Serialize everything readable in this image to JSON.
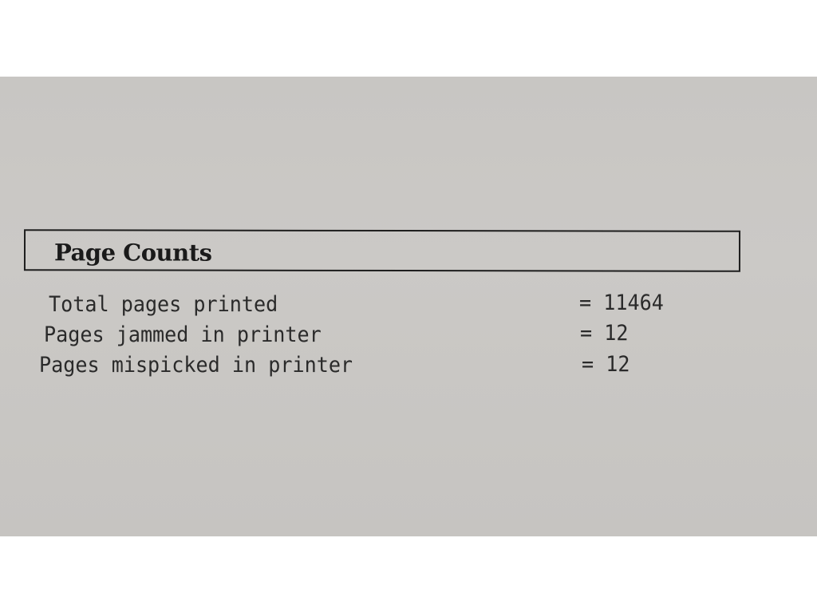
{
  "section": {
    "title": "Page Counts"
  },
  "rows": [
    {
      "label": "Total pages printed",
      "value": "= 11464"
    },
    {
      "label": "Pages jammed in printer",
      "value": "= 12"
    },
    {
      "label": "Pages mispicked in printer",
      "value": "= 12"
    }
  ]
}
